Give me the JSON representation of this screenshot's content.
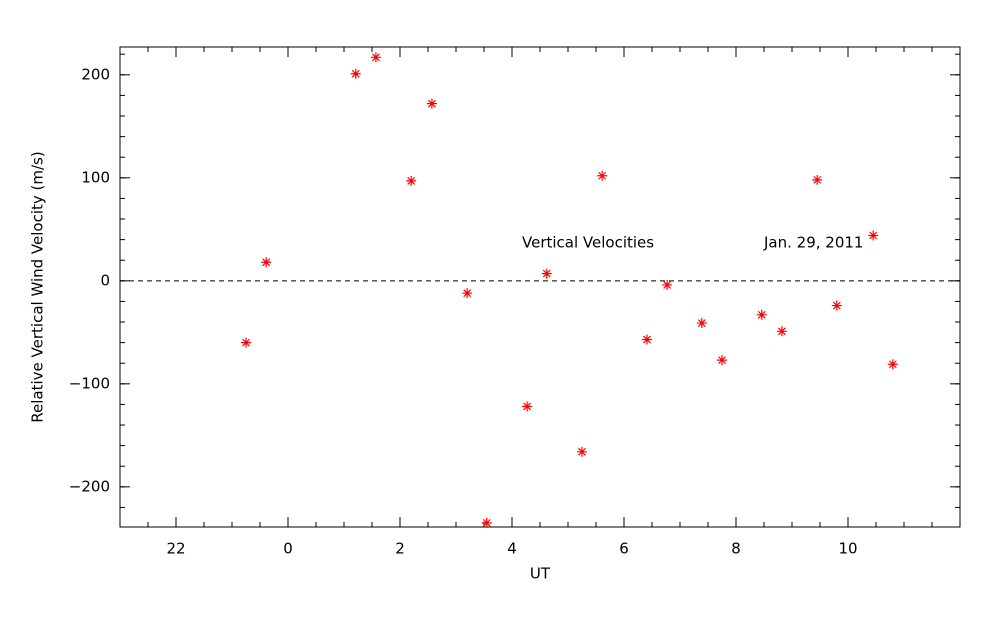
{
  "chart_data": {
    "type": "scatter",
    "xlabel": "UT",
    "ylabel": "Relative Vertical Wind Velocity (m/s)",
    "annotations": [
      "Vertical Velocities",
      "Jan. 29, 2011"
    ],
    "series": [
      {
        "color": "#ff0000",
        "x": [
          -0.75,
          -0.39,
          1.21,
          1.57,
          2.2,
          2.57,
          3.2,
          3.55,
          4.27,
          4.62,
          5.25,
          5.61,
          6.41,
          6.77,
          7.39,
          7.75,
          8.46,
          8.82,
          9.45,
          9.8,
          10.45,
          10.8
        ],
        "values": [
          -60,
          18,
          201,
          217,
          97,
          172,
          -12,
          -235,
          -122,
          7,
          -166,
          102,
          -57,
          -4,
          -41,
          -77,
          -33,
          -49,
          98,
          -24,
          44,
          -81
        ]
      }
    ],
    "xlim": [
      -3,
      12
    ],
    "xticks": [
      {
        "value": -2,
        "label": "22"
      },
      0,
      2,
      4,
      6,
      8,
      10
    ],
    "xminor": 0.5,
    "ylim": [
      -239,
      227
    ],
    "yticks": [
      {
        "value": -200,
        "label": "−200"
      },
      {
        "value": -100,
        "label": "−100"
      },
      0,
      100,
      200
    ],
    "yminor": 20,
    "reference_line": 0
  }
}
